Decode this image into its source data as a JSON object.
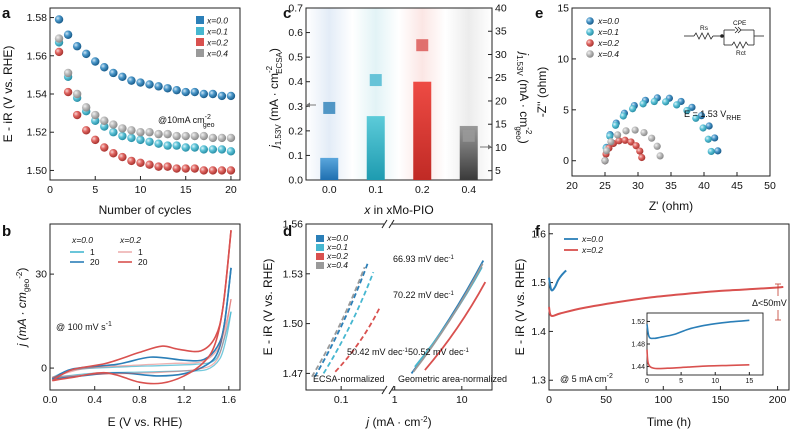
{
  "colors": {
    "x00": "#2b7fb8",
    "x01": "#46b7d0",
    "x02": "#d9514f",
    "x04": "#9a9a9a"
  },
  "chart_data": [
    {
      "panel": "a",
      "type": "scatter",
      "xlabel": "Number of cycles",
      "ylabel": "E - iR (V vs. RHE)",
      "xlim": [
        0,
        21
      ],
      "ylim": [
        1.495,
        1.585
      ],
      "xticks": [
        0,
        5,
        10,
        15,
        20
      ],
      "yticks": [
        1.5,
        1.52,
        1.54,
        1.56,
        1.58
      ],
      "xtick_labels": [
        "0",
        "5",
        "10",
        "15",
        "20"
      ],
      "ytick_labels": [
        "1.50",
        "1.52",
        "1.54",
        "1.56",
        "1.58"
      ],
      "annotation": "@10mA cm",
      "annotation_sup": "-2",
      "annotation_sub": "geo",
      "legend": [
        "x=0.0",
        "x=0.1",
        "x=0.2",
        "x=0.4"
      ],
      "x": [
        1,
        2,
        3,
        4,
        5,
        6,
        7,
        8,
        9,
        10,
        11,
        12,
        13,
        14,
        15,
        16,
        17,
        18,
        19,
        20
      ],
      "series": [
        {
          "name": "x=0.0",
          "color_key": "x00",
          "values": [
            1.579,
            1.571,
            1.565,
            1.561,
            1.557,
            1.554,
            1.551,
            1.549,
            1.547,
            1.546,
            1.545,
            1.544,
            1.543,
            1.542,
            1.541,
            1.541,
            1.54,
            1.54,
            1.539,
            1.539
          ]
        },
        {
          "name": "x=0.1",
          "color_key": "x01",
          "values": [
            1.567,
            1.549,
            1.538,
            1.531,
            1.526,
            1.523,
            1.52,
            1.518,
            1.517,
            1.516,
            1.515,
            1.514,
            1.513,
            1.513,
            1.512,
            1.512,
            1.511,
            1.511,
            1.511,
            1.51
          ]
        },
        {
          "name": "x=0.2",
          "color_key": "x02",
          "values": [
            1.562,
            1.541,
            1.529,
            1.521,
            1.516,
            1.512,
            1.509,
            1.507,
            1.505,
            1.504,
            1.503,
            1.502,
            1.502,
            1.501,
            1.501,
            1.501,
            1.5,
            1.5,
            1.5,
            1.5
          ]
        },
        {
          "name": "x=0.4",
          "color_key": "x04",
          "values": [
            1.569,
            1.551,
            1.54,
            1.533,
            1.529,
            1.526,
            1.524,
            1.522,
            1.521,
            1.52,
            1.52,
            1.519,
            1.519,
            1.518,
            1.518,
            1.518,
            1.518,
            1.517,
            1.517,
            1.517
          ]
        }
      ]
    },
    {
      "panel": "b",
      "type": "line",
      "xlabel": "E (V vs. RHE)",
      "ylabel": "j (mA · cm",
      "ylabel_sub": "geo",
      "ylabel_sup": "-2",
      "ylabel_end": ")",
      "xlim": [
        0,
        1.7
      ],
      "ylim": [
        -7,
        46
      ],
      "xticks": [
        0.0,
        0.4,
        0.8,
        1.2,
        1.6
      ],
      "yticks": [
        0,
        30
      ],
      "xtick_labels": [
        "0.0",
        "0.4",
        "0.8",
        "1.2",
        "1.6"
      ],
      "ytick_labels": [
        "0",
        "30"
      ],
      "annotation": "@ 100 mV s",
      "annotation_sup": "-1",
      "legend_groups": [
        {
          "title": "x=0.0",
          "items": [
            {
              "label": "1",
              "color_key": "x01"
            },
            {
              "label": "20",
              "color_key": "x00"
            }
          ]
        },
        {
          "title": "x=0.2",
          "items": [
            {
              "label": "1",
              "color_key": "x02"
            },
            {
              "label": "20",
              "color_key": "x02"
            }
          ]
        }
      ],
      "series": [
        {
          "name": "x=0.0 cycle 1",
          "color_key": "x01",
          "forward": [
            [
              0.02,
              -3.0
            ],
            [
              0.2,
              -0.6
            ],
            [
              0.6,
              0.3
            ],
            [
              1.0,
              0.8
            ],
            [
              1.3,
              1.2
            ],
            [
              1.45,
              2.0
            ],
            [
              1.52,
              5
            ],
            [
              1.58,
              12
            ],
            [
              1.62,
              18
            ]
          ],
          "reverse": [
            [
              1.62,
              18
            ],
            [
              1.58,
              10
            ],
            [
              1.52,
              3
            ],
            [
              1.4,
              -0.5
            ],
            [
              1.2,
              -0.9
            ],
            [
              0.8,
              -1.3
            ],
            [
              0.4,
              -1.6
            ],
            [
              0.02,
              -3.0
            ]
          ]
        },
        {
          "name": "x=0.0 cycle 20",
          "color_key": "x00",
          "forward": [
            [
              0.02,
              -3.5
            ],
            [
              0.2,
              -0.3
            ],
            [
              0.6,
              1.2
            ],
            [
              0.9,
              3.5
            ],
            [
              1.2,
              2.5
            ],
            [
              1.38,
              2.8
            ],
            [
              1.5,
              7
            ],
            [
              1.56,
              14
            ],
            [
              1.62,
              32
            ]
          ],
          "reverse": [
            [
              1.62,
              32
            ],
            [
              1.56,
              14
            ],
            [
              1.5,
              5
            ],
            [
              1.4,
              1.0
            ],
            [
              1.2,
              -1.8
            ],
            [
              0.95,
              -2.5
            ],
            [
              0.6,
              -1.5
            ],
            [
              0.2,
              -2.8
            ],
            [
              0.02,
              -3.5
            ]
          ]
        },
        {
          "name": "x=0.2 cycle 1",
          "color_key": "x02",
          "forward": [
            [
              0.02,
              -3.0
            ],
            [
              0.3,
              -0.2
            ],
            [
              0.7,
              0.8
            ],
            [
              1.1,
              1.5
            ],
            [
              1.35,
              2.0
            ],
            [
              1.5,
              6
            ],
            [
              1.58,
              15
            ],
            [
              1.62,
              22
            ]
          ],
          "reverse": [
            [
              1.62,
              22
            ],
            [
              1.56,
              10
            ],
            [
              1.48,
              2
            ],
            [
              1.3,
              -0.5
            ],
            [
              0.9,
              -1.5
            ],
            [
              0.4,
              -2
            ],
            [
              0.02,
              -3.0
            ]
          ]
        },
        {
          "name": "x=0.2 cycle 20",
          "color_key": "x02",
          "forward": [
            [
              0.02,
              -4.0
            ],
            [
              0.2,
              -0.5
            ],
            [
              0.5,
              1.5
            ],
            [
              0.8,
              5
            ],
            [
              1.0,
              7
            ],
            [
              1.15,
              6
            ],
            [
              1.35,
              5.5
            ],
            [
              1.48,
              10
            ],
            [
              1.55,
              20
            ],
            [
              1.62,
              44
            ]
          ],
          "reverse": [
            [
              1.62,
              44
            ],
            [
              1.55,
              20
            ],
            [
              1.48,
              8
            ],
            [
              1.38,
              2
            ],
            [
              1.2,
              -2.5
            ],
            [
              1.0,
              -4.8
            ],
            [
              0.8,
              -4.5
            ],
            [
              0.5,
              -1.5
            ],
            [
              0.2,
              -3.0
            ],
            [
              0.02,
              -4.0
            ]
          ]
        }
      ]
    },
    {
      "panel": "c",
      "type": "bar",
      "xlabel": "x in xMo-PIO",
      "ylabel_left": "j",
      "ylabel_left_sub": "1.53V",
      "ylabel_left_rest": " (mA · cm",
      "ylabel_left_sup": "-2",
      "ylabel_left_sub2": "ECSA",
      "ylabel_left_end": ")",
      "ylabel_right": "j",
      "ylabel_right_sub": "1.53V",
      "ylabel_right_rest": " (mA · cm",
      "ylabel_right_sup": "-2",
      "ylabel_right_sub2": "geo",
      "ylabel_right_end": ")",
      "categories": [
        "0.0",
        "0.1",
        "0.2",
        "0.4"
      ],
      "ylim_left": [
        0,
        0.7
      ],
      "ylim_right": [
        3,
        40
      ],
      "yticks_left": [
        0.0,
        0.1,
        0.2,
        0.3,
        0.4,
        0.5,
        0.6,
        0.7
      ],
      "ytick_labels_left": [
        "0.0",
        "0.1",
        "0.2",
        "0.3",
        "0.4",
        "0.5",
        "0.6",
        "0.7"
      ],
      "yticks_right": [
        5,
        10,
        15,
        20,
        25,
        30,
        35,
        40
      ],
      "ytick_labels_right": [
        "5",
        "10",
        "15",
        "20",
        "25",
        "30",
        "35",
        "40"
      ],
      "bars_ecsa": [
        0.09,
        0.26,
        0.4,
        0.22
      ],
      "squares_geo": [
        18.5,
        24.5,
        32.0,
        12.5
      ],
      "color_keys": [
        "x00",
        "x01",
        "x02",
        "x04"
      ]
    },
    {
      "panel": "d",
      "type": "line",
      "xlabel": "j (mA · cm",
      "xlabel_sup": "-2",
      "xlabel_end": ")",
      "ylabel": "E - iR (V vs. RHE)",
      "ylim": [
        1.46,
        1.56
      ],
      "yticks": [
        1.47,
        1.5,
        1.53,
        1.56
      ],
      "ytick_labels": [
        "1.47",
        "1.50",
        "1.53",
        "1.56"
      ],
      "xtick_labels_left": [
        "0.1"
      ],
      "xtick_labels_right": [
        "1",
        "10"
      ],
      "legend": [
        "x=0.0",
        "x=0.1",
        "x=0.2",
        "x=0.4"
      ],
      "region_labels": [
        "ECSA-normalized",
        "Geometric area-normalized"
      ],
      "tafel_labels": [
        {
          "text": "66.93 mV dec",
          "sup": "-1"
        },
        {
          "text": "70.22 mV dec",
          "sup": "-1"
        },
        {
          "text": "50.42 mV dec",
          "sup": "-1"
        },
        {
          "text": "50.52 mV dec",
          "sup": "-1"
        }
      ],
      "series_ecsa": [
        {
          "name": "x=0.0",
          "color_key": "x00",
          "x_log": [
            -1.45,
            -0.55
          ],
          "y": [
            1.468,
            1.536
          ]
        },
        {
          "name": "x=0.1",
          "color_key": "x01",
          "x_log": [
            -1.3,
            -0.45
          ],
          "y": [
            1.47,
            1.531
          ]
        },
        {
          "name": "x=0.2",
          "color_key": "x02",
          "x_log": [
            -1.1,
            -0.35
          ],
          "y": [
            1.471,
            1.509
          ]
        },
        {
          "name": "x=0.4",
          "color_key": "x04",
          "x_log": [
            -1.5,
            -0.6
          ],
          "y": [
            1.468,
            1.534
          ]
        }
      ],
      "series_geo": [
        {
          "name": "x=0.0",
          "color_key": "x00",
          "x_log": [
            0.25,
            1.32
          ],
          "y": [
            1.47,
            1.538
          ]
        },
        {
          "name": "x=0.1",
          "color_key": "x01",
          "x_log": [
            0.3,
            1.3
          ],
          "y": [
            1.474,
            1.534
          ]
        },
        {
          "name": "x=0.2",
          "color_key": "x02",
          "x_log": [
            0.45,
            1.35
          ],
          "y": [
            1.472,
            1.525
          ]
        },
        {
          "name": "x=0.4",
          "color_key": "x04",
          "x_log": [
            0.28,
            1.31
          ],
          "y": [
            1.471,
            1.536
          ]
        }
      ]
    },
    {
      "panel": "e",
      "type": "scatter",
      "xlabel": "Z' (ohm)",
      "ylabel": "-Z'' (ohm)",
      "xlim": [
        20,
        50
      ],
      "ylim": [
        -1.5,
        15
      ],
      "xticks": [
        20,
        25,
        30,
        35,
        40,
        45,
        50
      ],
      "yticks": [
        0,
        5,
        10,
        15
      ],
      "xtick_labels": [
        "20",
        "25",
        "30",
        "35",
        "40",
        "45",
        "50"
      ],
      "ytick_labels": [
        "0",
        "5",
        "10",
        "15"
      ],
      "annotation": "E = 1.53 V",
      "annotation_sub": "RHE",
      "legend": [
        "x=0.0",
        "x=0.1",
        "x=0.2",
        "x=0.4"
      ],
      "circuit_labels": [
        "Rs",
        "CPE",
        "Rct"
      ],
      "arcs": [
        {
          "name": "x=0.0",
          "color_key": "x00",
          "Rs": 25.0,
          "Rct": 17.2
        },
        {
          "name": "x=0.1",
          "color_key": "x01",
          "Rs": 25.0,
          "Rct": 16.2
        },
        {
          "name": "x=0.2",
          "color_key": "x02",
          "Rs": 25.0,
          "Rct": 5.6
        },
        {
          "name": "x=0.4",
          "color_key": "x04",
          "Rs": 25.0,
          "Rct": 8.4
        }
      ]
    },
    {
      "panel": "f",
      "type": "line",
      "xlabel": "Time (h)",
      "ylabel": "E - iR (V vs. RHE)",
      "xlim": [
        0,
        210
      ],
      "ylim": [
        1.28,
        1.62
      ],
      "xticks": [
        0,
        50,
        100,
        150,
        200
      ],
      "yticks": [
        1.3,
        1.4,
        1.5,
        1.6
      ],
      "xtick_labels": [
        "0",
        "50",
        "100",
        "150",
        "200"
      ],
      "ytick_labels": [
        "1.3",
        "1.4",
        "1.5",
        "1.6"
      ],
      "annotation": "@ 5 mA cm",
      "annotation_sup": "-2",
      "delta_label": "Δ<50mV",
      "legend": [
        "x=0.0",
        "x=0.2"
      ],
      "series": [
        {
          "name": "x=0.0",
          "color_key": "x00",
          "points": [
            [
              0,
              1.51
            ],
            [
              2,
              1.485
            ],
            [
              5,
              1.49
            ],
            [
              8,
              1.505
            ],
            [
              11,
              1.515
            ],
            [
              15,
              1.525
            ]
          ]
        },
        {
          "name": "x=0.2",
          "color_key": "x02",
          "points": [
            [
              0,
              1.45
            ],
            [
              2,
              1.432
            ],
            [
              10,
              1.437
            ],
            [
              30,
              1.448
            ],
            [
              60,
              1.46
            ],
            [
              90,
              1.47
            ],
            [
              120,
              1.477
            ],
            [
              150,
              1.483
            ],
            [
              180,
              1.487
            ],
            [
              200,
              1.49
            ],
            [
              205,
              1.491
            ]
          ]
        }
      ],
      "inset": {
        "xlim": [
          0,
          17
        ],
        "ylim": [
          1.425,
          1.535
        ],
        "xticks": [
          0,
          5,
          10,
          15
        ],
        "yticks": [
          1.44,
          1.48,
          1.52
        ],
        "xtick_labels": [
          "0",
          "5",
          "10",
          "15"
        ],
        "ytick_labels": [
          "1.44",
          "1.48",
          "1.52"
        ],
        "series": [
          {
            "name": "x=0.0",
            "color_key": "x00",
            "points": [
              [
                0,
                1.515
              ],
              [
                0.3,
                1.493
              ],
              [
                1,
                1.49
              ],
              [
                2,
                1.492
              ],
              [
                4,
                1.497
              ],
              [
                6,
                1.506
              ],
              [
                8,
                1.512
              ],
              [
                10,
                1.516
              ],
              [
                12,
                1.519
              ],
              [
                14,
                1.521
              ],
              [
                15,
                1.522
              ]
            ]
          },
          {
            "name": "x=0.2",
            "color_key": "x02",
            "points": [
              [
                0,
                1.47
              ],
              [
                0.2,
                1.445
              ],
              [
                1,
                1.437
              ],
              [
                3,
                1.437
              ],
              [
                6,
                1.439
              ],
              [
                9,
                1.441
              ],
              [
                12,
                1.442
              ],
              [
                15,
                1.443
              ]
            ]
          }
        ]
      }
    }
  ],
  "panel_letters": [
    "a",
    "b",
    "c",
    "d",
    "e",
    "f"
  ]
}
